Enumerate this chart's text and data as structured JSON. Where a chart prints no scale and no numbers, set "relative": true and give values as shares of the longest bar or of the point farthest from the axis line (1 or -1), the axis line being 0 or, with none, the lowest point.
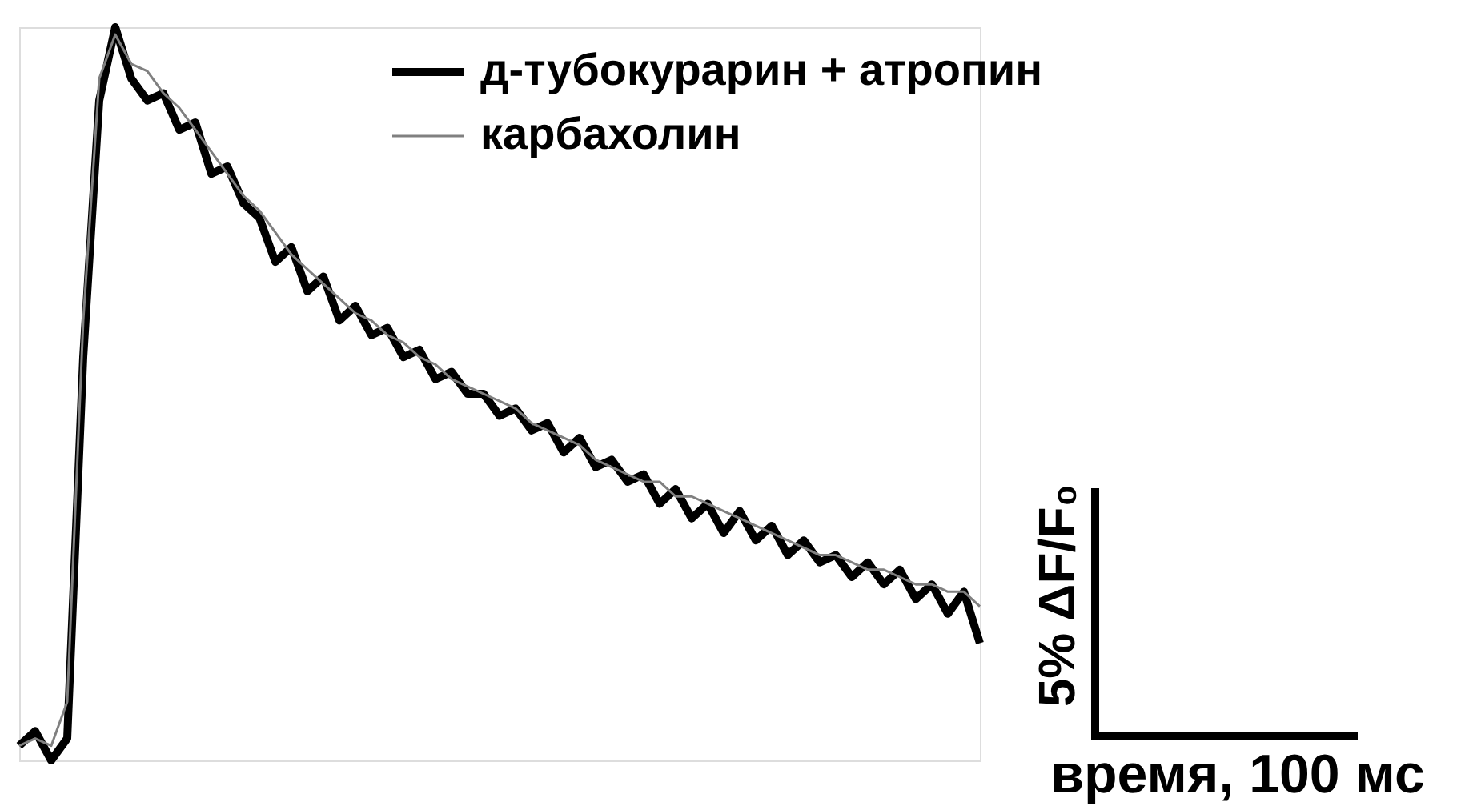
{
  "chart_data": {
    "type": "line",
    "relative": true,
    "legend": "top",
    "marker": "none",
    "line_style": "solid",
    "categories": [
      null,
      null,
      null,
      null,
      null,
      null,
      null,
      null,
      null,
      null,
      null,
      null,
      null,
      null,
      null,
      null,
      null,
      null,
      null,
      null,
      null,
      null,
      null,
      null,
      null,
      null,
      null,
      null,
      null,
      null,
      null,
      null,
      null,
      null,
      null,
      null,
      null,
      null,
      null,
      null,
      null,
      null,
      null,
      null,
      null,
      null,
      null,
      null,
      null,
      null,
      null,
      null,
      null,
      null,
      null,
      null,
      null,
      null,
      null,
      null,
      null
    ],
    "series": [
      {
        "name": "д-тубокурарин + атропин",
        "color": "#000000",
        "values": [
          0.02,
          0.04,
          0.0,
          0.03,
          0.55,
          0.9,
          1.0,
          0.93,
          0.9,
          0.91,
          0.86,
          0.87,
          0.8,
          0.81,
          0.76,
          0.74,
          0.68,
          0.7,
          0.64,
          0.66,
          0.6,
          0.62,
          0.58,
          0.59,
          0.55,
          0.56,
          0.52,
          0.53,
          0.5,
          0.5,
          0.47,
          0.48,
          0.45,
          0.46,
          0.42,
          0.44,
          0.4,
          0.41,
          0.38,
          0.39,
          0.35,
          0.37,
          0.33,
          0.35,
          0.31,
          0.34,
          0.3,
          0.32,
          0.28,
          0.3,
          0.27,
          0.28,
          0.25,
          0.27,
          0.24,
          0.26,
          0.22,
          0.24,
          0.2,
          0.23,
          0.16
        ]
      },
      {
        "name": "карбахолин",
        "color": "#808080",
        "values": [
          0.02,
          0.03,
          0.02,
          0.08,
          0.6,
          0.93,
          0.99,
          0.95,
          0.94,
          0.91,
          0.89,
          0.86,
          0.83,
          0.8,
          0.77,
          0.75,
          0.72,
          0.69,
          0.67,
          0.65,
          0.63,
          0.61,
          0.6,
          0.58,
          0.57,
          0.55,
          0.54,
          0.52,
          0.51,
          0.5,
          0.49,
          0.48,
          0.46,
          0.45,
          0.44,
          0.43,
          0.41,
          0.4,
          0.39,
          0.38,
          0.38,
          0.36,
          0.36,
          0.35,
          0.34,
          0.33,
          0.32,
          0.31,
          0.3,
          0.29,
          0.28,
          0.28,
          0.27,
          0.26,
          0.26,
          0.25,
          0.24,
          0.24,
          0.23,
          0.23,
          0.21
        ]
      }
    ],
    "annotations": [
      "5% ΔF/F₀",
      "время, 100 мс"
    ]
  }
}
